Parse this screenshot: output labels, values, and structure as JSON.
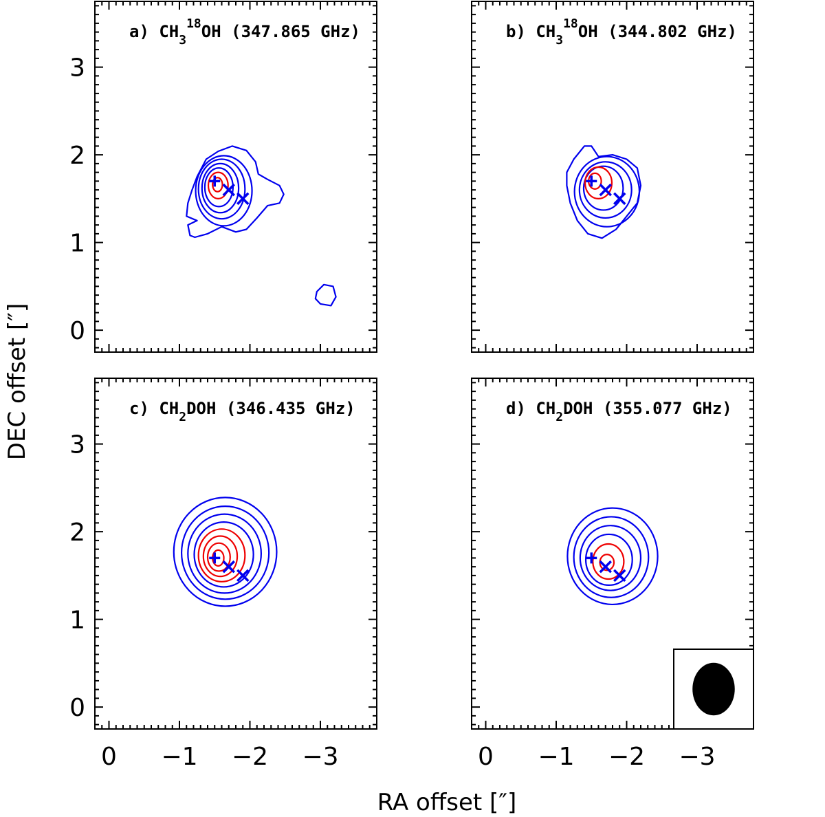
{
  "chart_data": {
    "type": "contour",
    "xlabel": "RA offset [″]",
    "ylabel": "DEC offset [″]",
    "xlim": [
      0.2,
      -3.8
    ],
    "ylim": [
      -0.25,
      3.75
    ],
    "xticks": [
      0,
      -1,
      -2,
      -3
    ],
    "yticks": [
      0,
      1,
      2,
      3
    ],
    "xtick_labels": [
      "0",
      "−1",
      "−2",
      "−3"
    ],
    "ytick_labels": [
      "0",
      "1",
      "2",
      "3"
    ],
    "colors": {
      "low_contours": "#0000ee",
      "high_contours": "#ee0000",
      "markers": "#0000ee"
    },
    "markers": [
      {
        "symbol": "plus",
        "x": -1.5,
        "y": 1.7
      },
      {
        "symbol": "cross",
        "x": -1.7,
        "y": 1.6
      },
      {
        "symbol": "cross",
        "x": -1.9,
        "y": 1.5
      }
    ],
    "beam": {
      "major_arcsec": 0.5,
      "minor_arcsec": 0.5,
      "shape": "circle",
      "location": "bottom-right of panel d"
    },
    "panels": [
      {
        "label_prefix": "a) CH",
        "sub": "3",
        "sup": "18",
        "label_suffix": "OH (347.865 GHz)",
        "contours": [
          {
            "color": "blue",
            "points": [
              [
                -1.25,
                1.25
              ],
              [
                -1.1,
                1.3
              ],
              [
                -1.12,
                1.45
              ],
              [
                -1.18,
                1.6
              ],
              [
                -1.25,
                1.75
              ],
              [
                -1.38,
                1.95
              ],
              [
                -1.55,
                2.04
              ],
              [
                -1.75,
                2.1
              ],
              [
                -1.95,
                2.05
              ],
              [
                -2.08,
                1.92
              ],
              [
                -2.12,
                1.78
              ],
              [
                -2.25,
                1.72
              ],
              [
                -2.42,
                1.65
              ],
              [
                -2.48,
                1.55
              ],
              [
                -2.42,
                1.45
              ],
              [
                -2.25,
                1.42
              ],
              [
                -2.1,
                1.28
              ],
              [
                -1.95,
                1.15
              ],
              [
                -1.8,
                1.12
              ],
              [
                -1.6,
                1.18
              ],
              [
                -1.4,
                1.1
              ],
              [
                -1.22,
                1.06
              ],
              [
                -1.15,
                1.08
              ],
              [
                -1.12,
                1.2
              ]
            ]
          },
          {
            "color": "blue",
            "points": [
              [
                -2.95,
                0.44
              ],
              [
                -3.05,
                0.52
              ],
              [
                -3.18,
                0.5
              ],
              [
                -3.22,
                0.38
              ],
              [
                -3.15,
                0.28
              ],
              [
                -3.0,
                0.3
              ],
              [
                -2.93,
                0.36
              ]
            ]
          },
          {
            "color": "blue",
            "cx": -1.63,
            "cy": 1.59,
            "rx": 0.4,
            "ry": 0.4
          },
          {
            "color": "blue",
            "cx": -1.6,
            "cy": 1.61,
            "rx": 0.33,
            "ry": 0.34
          },
          {
            "color": "blue",
            "cx": -1.58,
            "cy": 1.62,
            "rx": 0.26,
            "ry": 0.28
          },
          {
            "color": "blue",
            "cx": -1.56,
            "cy": 1.63,
            "rx": 0.2,
            "ry": 0.22
          },
          {
            "color": "red",
            "cx": -1.55,
            "cy": 1.65,
            "rx": 0.14,
            "ry": 0.15
          },
          {
            "color": "red",
            "cx": -1.54,
            "cy": 1.66,
            "rx": 0.07,
            "ry": 0.08
          }
        ]
      },
      {
        "label_prefix": "b) CH",
        "sub": "3",
        "sup": "18",
        "label_suffix": "OH (344.802 GHz)",
        "contours": [
          {
            "color": "blue",
            "points": [
              [
                -1.15,
                1.65
              ],
              [
                -1.15,
                1.8
              ],
              [
                -1.25,
                1.95
              ],
              [
                -1.4,
                2.1
              ],
              [
                -1.5,
                2.1
              ],
              [
                -1.6,
                1.98
              ],
              [
                -1.8,
                2.0
              ],
              [
                -2.0,
                1.95
              ],
              [
                -2.15,
                1.85
              ],
              [
                -2.2,
                1.65
              ],
              [
                -2.15,
                1.45
              ],
              [
                -2.0,
                1.3
              ],
              [
                -1.85,
                1.15
              ],
              [
                -1.65,
                1.05
              ],
              [
                -1.45,
                1.1
              ],
              [
                -1.3,
                1.25
              ],
              [
                -1.2,
                1.45
              ]
            ]
          },
          {
            "color": "blue",
            "cx": -1.72,
            "cy": 1.58,
            "rx": 0.46,
            "ry": 0.4
          },
          {
            "color": "blue",
            "cx": -1.7,
            "cy": 1.6,
            "rx": 0.37,
            "ry": 0.32
          },
          {
            "color": "blue",
            "cx": -1.67,
            "cy": 1.62,
            "rx": 0.28,
            "ry": 0.25
          },
          {
            "color": "red",
            "cx": -1.6,
            "cy": 1.68,
            "rx": 0.19,
            "ry": 0.18
          },
          {
            "color": "red",
            "cx": -1.55,
            "cy": 1.7,
            "rx": 0.09,
            "ry": 0.09
          }
        ]
      },
      {
        "label_prefix": "c) CH",
        "sub": "2",
        "sup": "",
        "label_suffix": "DOH (346.435 GHz)",
        "contours": [
          {
            "color": "blue",
            "cx": -1.65,
            "cy": 1.77,
            "rx": 0.73,
            "ry": 0.62
          },
          {
            "color": "blue",
            "cx": -1.65,
            "cy": 1.76,
            "rx": 0.62,
            "ry": 0.53
          },
          {
            "color": "blue",
            "cx": -1.64,
            "cy": 1.75,
            "rx": 0.52,
            "ry": 0.45
          },
          {
            "color": "blue",
            "cx": -1.63,
            "cy": 1.74,
            "rx": 0.42,
            "ry": 0.37
          },
          {
            "color": "red",
            "cx": -1.6,
            "cy": 1.73,
            "rx": 0.33,
            "ry": 0.3
          },
          {
            "color": "red",
            "cx": -1.58,
            "cy": 1.72,
            "rx": 0.24,
            "ry": 0.23
          },
          {
            "color": "red",
            "cx": -1.56,
            "cy": 1.71,
            "rx": 0.16,
            "ry": 0.16
          },
          {
            "color": "red",
            "cx": -1.55,
            "cy": 1.7,
            "rx": 0.08,
            "ry": 0.09
          }
        ]
      },
      {
        "label_prefix": "d) CH",
        "sub": "2",
        "sup": "",
        "label_suffix": "DOH (355.077 GHz)",
        "contours": [
          {
            "color": "blue",
            "cx": -1.8,
            "cy": 1.72,
            "rx": 0.64,
            "ry": 0.55
          },
          {
            "color": "blue",
            "cx": -1.78,
            "cy": 1.71,
            "rx": 0.53,
            "ry": 0.46
          },
          {
            "color": "blue",
            "cx": -1.77,
            "cy": 1.7,
            "rx": 0.43,
            "ry": 0.37
          },
          {
            "color": "blue",
            "cx": -1.75,
            "cy": 1.68,
            "rx": 0.33,
            "ry": 0.29
          },
          {
            "color": "red",
            "cx": -1.74,
            "cy": 1.66,
            "rx": 0.22,
            "ry": 0.2
          },
          {
            "color": "red",
            "cx": -1.72,
            "cy": 1.65,
            "rx": 0.1,
            "ry": 0.09
          }
        ]
      }
    ]
  }
}
